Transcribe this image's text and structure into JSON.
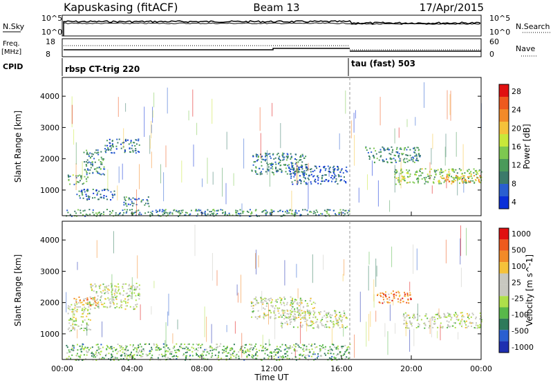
{
  "header": {
    "station": "Kapuskasing (fitACF)",
    "beam": "Beam 13",
    "date": "17/Apr/2015"
  },
  "noise_panel": {
    "left_label": "N.Sky",
    "left_ticks": [
      "10^5",
      "10^0"
    ],
    "right_ticks": [
      "10^5",
      "10^0"
    ],
    "right_label": "N.Search"
  },
  "freq_panel": {
    "left_label_line1": "Freq.",
    "left_label_line2": "[MHz]",
    "left_ticks": [
      "18",
      "8"
    ],
    "right_ticks": [
      "60",
      "0"
    ],
    "right_label": "Nave"
  },
  "cpid_panel": {
    "label": "CPID",
    "segments": [
      {
        "text": "rbsp CT-trig 220",
        "start_hour": 0,
        "end_hour": 16.5
      },
      {
        "text": "tau (fast) 503",
        "start_hour": 16.5,
        "end_hour": 24
      }
    ]
  },
  "colors": {
    "power_scale": [
      "#0a2fd8",
      "#2a5fd0",
      "#3b7a6a",
      "#4a9a5a",
      "#7dc850",
      "#c8e83a",
      "#f5c23a",
      "#f28a28",
      "#ee5a1e",
      "#e01010"
    ],
    "velocity_scale": [
      "#1e2fb0",
      "#2a5fd0",
      "#2e7a5a",
      "#58b84a",
      "#aee04a",
      "#c8c8c0",
      "#c8c8c0",
      "#f5c23a",
      "#f28a28",
      "#ee5a1e",
      "#e01010"
    ]
  },
  "chart_data": [
    {
      "type": "heatmap",
      "name_shown": "",
      "ylabel": "Slant Range [km]",
      "yticks": [
        "1000",
        "2000",
        "3000",
        "4000"
      ],
      "ylim": [
        180,
        4600
      ],
      "xlim": [
        0,
        24
      ],
      "colorbar_label": "Power [dB]",
      "colorbar_ticks": [
        "4",
        "8",
        "12",
        "16",
        "20",
        "24",
        "28"
      ],
      "colorbar_range": [
        0,
        30
      ],
      "regions": [
        {
          "t0": 0.3,
          "t1": 1.5,
          "r0": 1200,
          "r1": 1500,
          "level": 0.35
        },
        {
          "t0": 1.2,
          "t1": 2.4,
          "r0": 1500,
          "r1": 2300,
          "level": 0.3
        },
        {
          "t0": 2.4,
          "t1": 4.4,
          "r0": 2200,
          "r1": 2650,
          "level": 0.2
        },
        {
          "t0": 0.8,
          "t1": 3.0,
          "r0": 700,
          "r1": 1050,
          "level": 0.2
        },
        {
          "t0": 3.5,
          "t1": 5.0,
          "r0": 500,
          "r1": 800,
          "level": 0.25
        },
        {
          "t0": 0.2,
          "t1": 16.5,
          "r0": 180,
          "r1": 400,
          "level": 0.3
        },
        {
          "t0": 10.8,
          "t1": 14.0,
          "r0": 1500,
          "r1": 2200,
          "level": 0.25
        },
        {
          "t0": 13.0,
          "t1": 16.3,
          "r0": 1200,
          "r1": 1800,
          "level": 0.15
        },
        {
          "t0": 17.3,
          "t1": 20.5,
          "r0": 1900,
          "r1": 2400,
          "level": 0.3
        },
        {
          "t0": 19.0,
          "t1": 24.0,
          "r0": 1200,
          "r1": 1700,
          "level": 0.45
        },
        {
          "t0": 21.5,
          "t1": 24.0,
          "r0": 1250,
          "r1": 1500,
          "level": 0.7
        }
      ]
    },
    {
      "type": "heatmap",
      "ylabel": "Slant Range [km]",
      "yticks": [
        "1000",
        "2000",
        "3000",
        "4000"
      ],
      "ylim": [
        180,
        4600
      ],
      "xlim": [
        0,
        24
      ],
      "xlabel": "Time UT",
      "xticks": [
        "00:00",
        "04:00",
        "08:00",
        "12:00",
        "16:00",
        "20:00",
        "00:00"
      ],
      "colorbar_label": "Velocity [m s^-1]",
      "colorbar_ticks": [
        "1000",
        "500",
        "100",
        "25",
        "-25",
        "-100",
        "-500",
        "-1000"
      ],
      "regions": [
        {
          "t0": 0.3,
          "t1": 1.6,
          "r0": 1100,
          "r1": 2000,
          "level": 0.5
        },
        {
          "t0": 1.5,
          "t1": 4.4,
          "r0": 1800,
          "r1": 2650,
          "level": 0.5
        },
        {
          "t0": 0.6,
          "t1": 2.0,
          "r0": 1900,
          "r1": 2200,
          "level": 0.75
        },
        {
          "t0": 10.8,
          "t1": 14.5,
          "r0": 1500,
          "r1": 2200,
          "level": 0.5
        },
        {
          "t0": 12.5,
          "t1": 16.3,
          "r0": 1200,
          "r1": 1800,
          "level": 0.5
        },
        {
          "t0": 18.0,
          "t1": 20.0,
          "r0": 2000,
          "r1": 2400,
          "level": 0.78
        },
        {
          "t0": 19.5,
          "t1": 24.0,
          "r0": 1200,
          "r1": 1700,
          "level": 0.5
        },
        {
          "t0": 0.2,
          "t1": 16.5,
          "r0": 180,
          "r1": 700,
          "level": 0.35
        }
      ]
    }
  ]
}
